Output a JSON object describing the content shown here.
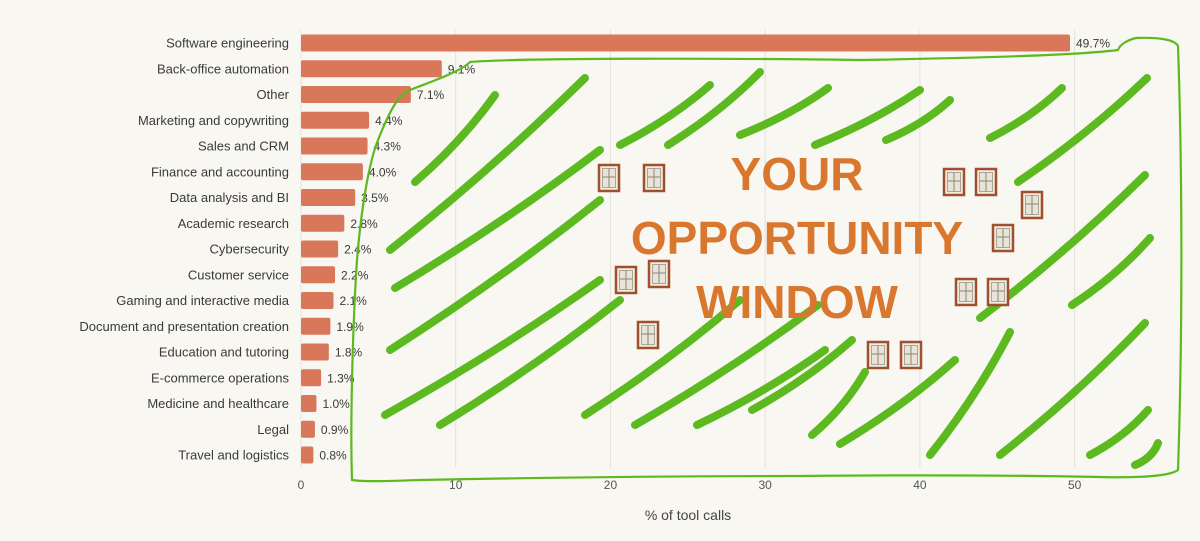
{
  "chart_data": {
    "type": "bar",
    "orientation": "horizontal",
    "categories": [
      "Software engineering",
      "Back-office automation",
      "Other",
      "Marketing and copywriting",
      "Sales and CRM",
      "Finance and accounting",
      "Data analysis and BI",
      "Academic research",
      "Cybersecurity",
      "Customer service",
      "Gaming and interactive media",
      "Document and presentation creation",
      "Education and tutoring",
      "E-commerce operations",
      "Medicine and healthcare",
      "Legal",
      "Travel and logistics"
    ],
    "values": [
      49.7,
      9.1,
      7.1,
      4.4,
      4.3,
      4.0,
      3.5,
      2.8,
      2.4,
      2.2,
      2.1,
      1.9,
      1.8,
      1.3,
      1.0,
      0.9,
      0.8
    ],
    "value_labels": [
      "49.7%",
      "9.1%",
      "7.1%",
      "4.4%",
      "4.3%",
      "4.0%",
      "3.5%",
      "2.8%",
      "2.4%",
      "2.2%",
      "2.1%",
      "1.9%",
      "1.8%",
      "1.3%",
      "1.0%",
      "0.9%",
      "0.8%"
    ],
    "xlabel": "% of tool calls",
    "ylabel": "",
    "xlim": [
      0,
      55
    ],
    "xticks": [
      "0",
      "10",
      "20",
      "30",
      "40",
      "50"
    ],
    "grid": "vertical",
    "bar_color": "#d9775b",
    "annotation": {
      "lines": [
        "YOUR",
        "OPPORTUNITY",
        "WINDOW"
      ],
      "text_color": "#d9772e",
      "scribble_color": "#5cb91f",
      "window_icon": "window-icon",
      "window_icon_color": "#a0502e"
    }
  }
}
